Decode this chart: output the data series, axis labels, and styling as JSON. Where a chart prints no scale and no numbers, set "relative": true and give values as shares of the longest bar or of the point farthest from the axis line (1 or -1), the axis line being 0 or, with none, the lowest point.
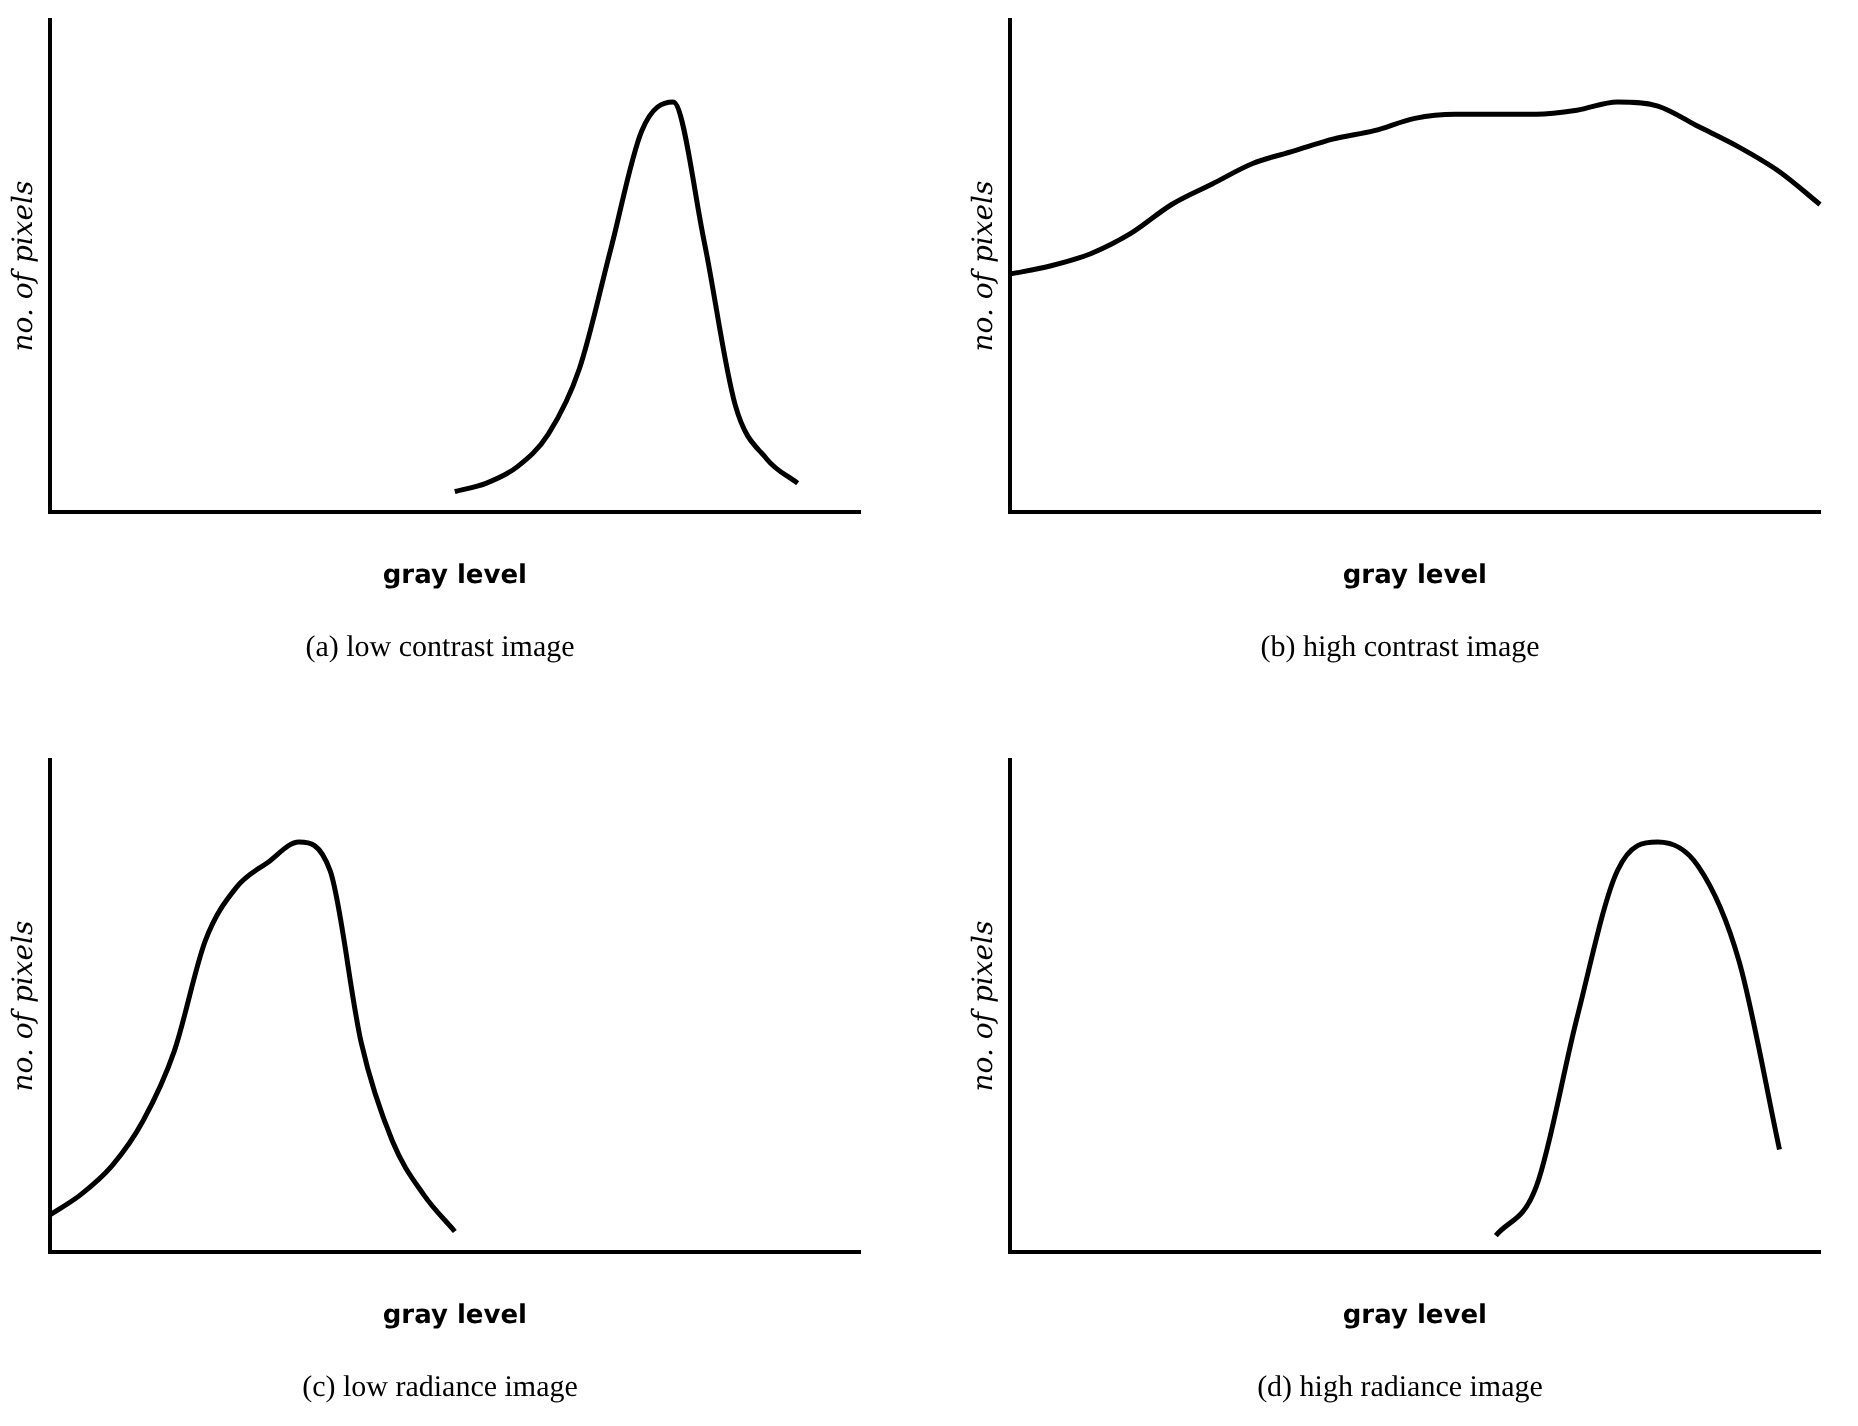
{
  "chart_data": [
    {
      "type": "line",
      "relative": true,
      "xlabel": "gray level",
      "ylabel": "no. of pixels",
      "annotations": [
        "(a) low contrast image"
      ],
      "legend": false,
      "grid": false,
      "marker": "none",
      "categories": [
        null,
        null,
        null,
        null,
        null,
        null,
        null,
        null,
        null,
        null,
        null,
        null,
        null,
        null,
        null,
        null,
        null,
        null,
        null,
        null,
        null,
        null,
        null,
        null,
        null,
        null,
        null
      ],
      "series": [
        {
          "color": "#000000",
          "values": [
            null,
            null,
            null,
            null,
            null,
            null,
            null,
            null,
            null,
            null,
            null,
            null,
            null,
            0.05,
            0.07,
            0.11,
            0.19,
            0.35,
            0.64,
            0.93,
            1,
            0.66,
            0.26,
            0.13,
            0.07,
            null,
            null
          ]
        }
      ]
    },
    {
      "type": "line",
      "relative": true,
      "xlabel": "gray level",
      "ylabel": "no. of pixels",
      "annotations": [
        "(b) high contrast image"
      ],
      "legend": false,
      "grid": false,
      "marker": "none",
      "categories": [
        null,
        null,
        null,
        null,
        null,
        null,
        null,
        null,
        null,
        null,
        null,
        null,
        null,
        null,
        null,
        null,
        null,
        null,
        null,
        null,
        null
      ],
      "series": [
        {
          "color": "#000000",
          "values": [
            0.58,
            0.6,
            0.63,
            0.68,
            0.75,
            0.8,
            0.85,
            0.88,
            0.91,
            0.93,
            0.96,
            0.97,
            0.97,
            0.97,
            0.98,
            1,
            0.99,
            0.94,
            0.89,
            0.83,
            0.75
          ]
        }
      ]
    },
    {
      "type": "line",
      "relative": true,
      "xlabel": "gray level",
      "ylabel": "no. of pixels",
      "annotations": [
        "(c) low radiance image"
      ],
      "legend": false,
      "grid": false,
      "marker": "none",
      "categories": [
        null,
        null,
        null,
        null,
        null,
        null,
        null,
        null,
        null,
        null,
        null,
        null,
        null,
        null,
        null,
        null,
        null,
        null,
        null,
        null,
        null,
        null,
        null,
        null,
        null,
        null,
        null
      ],
      "series": [
        {
          "color": "#000000",
          "values": [
            0.09,
            0.14,
            0.21,
            0.32,
            0.49,
            0.76,
            0.89,
            0.95,
            1,
            0.93,
            0.51,
            0.27,
            0.14,
            0.05,
            null,
            null,
            null,
            null,
            null,
            null,
            null,
            null,
            null,
            null,
            null,
            null,
            null
          ]
        }
      ]
    },
    {
      "type": "line",
      "relative": true,
      "xlabel": "gray level",
      "ylabel": "no. of pixels",
      "annotations": [
        "(d) high radiance image"
      ],
      "legend": false,
      "grid": false,
      "marker": "none",
      "categories": [
        null,
        null,
        null,
        null,
        null,
        null,
        null,
        null,
        null,
        null,
        null,
        null,
        null,
        null,
        null,
        null,
        null,
        null,
        null,
        null,
        null
      ],
      "series": [
        {
          "color": "#000000",
          "values": [
            null,
            null,
            null,
            null,
            null,
            null,
            null,
            null,
            null,
            null,
            null,
            null,
            0.04,
            0.16,
            0.57,
            0.93,
            1,
            0.94,
            0.71,
            0.25,
            null
          ]
        }
      ]
    }
  ]
}
